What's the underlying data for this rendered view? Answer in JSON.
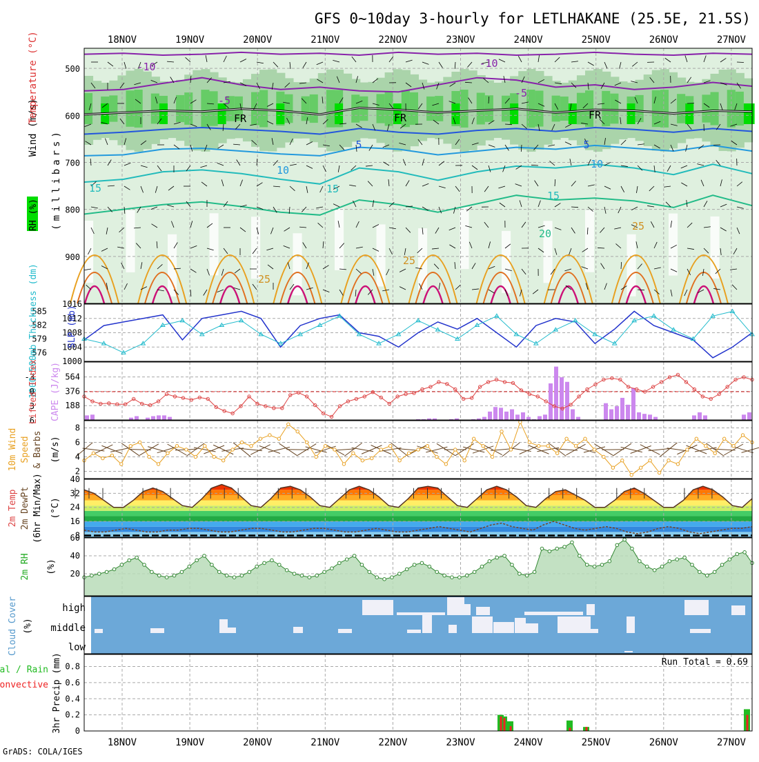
{
  "title": "GFS 0~10day 3-hourly for LETLHAKANE (25.5E, 21.5S)",
  "footer": "GrADS: COLA/IGES",
  "days": [
    "18NOV",
    "19NOV",
    "20NOV",
    "21NOV",
    "22NOV",
    "23NOV",
    "24NOV",
    "25NOV",
    "26NOV",
    "27NOV"
  ],
  "colors": {
    "grid": "#a8a8a8",
    "frame": "#000000",
    "rh_dark": "#00dd00",
    "rh_mid": "#66cc66",
    "rh_light": "#aad4aa",
    "rh_pale": "#dff0df",
    "freeze": "#000000",
    "slp": "#2233cc",
    "thickness": "#22bbcc",
    "lifted": "#dd4444",
    "cape": "#cc88ee",
    "wind_speed": "#e8a020",
    "wind_barb": "#664422",
    "rh2m": "#55aa55",
    "cloud": "#6ca8d8",
    "cloud_gap": "#f0f0f8",
    "precip_total": "#22bb22",
    "precip_conv": "#ee2222"
  },
  "labels": {
    "upper": {
      "wind": "Wind (m/s)",
      "temperature": "Temperature (°C)",
      "rh": "RH (%)",
      "pressure": "(millibars)"
    },
    "slp_panel": {
      "thickness": "1000-500mb Thickness (dm)",
      "slp": "SLP (mb)"
    },
    "cape_panel": {
      "lifted": "Lifted Index",
      "cape": "CAPE (J/kg)"
    },
    "wind_panel": {
      "line1": "10m Wind",
      "line2": "Speed",
      "line3": "& Barbs",
      "unit": "(m/s)"
    },
    "temp_panel": {
      "line1": "2m Temp",
      "line2": "2m DewPt",
      "line3": "(6hr Min/Max)",
      "unit": "(°C)"
    },
    "rh_panel": {
      "line1": "2m RH",
      "unit": "(%)"
    },
    "cloud_panel": {
      "line1": "Cloud Cover",
      "unit": "(%)",
      "high": "high",
      "middle": "middle",
      "low": "low"
    },
    "precip_panel": {
      "line1": "Total / Rain",
      "line2": "Convective",
      "line3": "3hr Precip (mm)",
      "run_total": "Run Total = 0.69"
    }
  },
  "chart_data": [
    {
      "type": "heatmap",
      "name": "upper-air",
      "y_ticks": [
        500,
        600,
        700,
        800,
        900
      ],
      "ylim": [
        1000,
        450
      ],
      "contour_labels": [
        "-10",
        "-5",
        "FR",
        "5",
        "10",
        "15",
        "20",
        "25"
      ],
      "isotherms": [
        {
          "label": "-10",
          "values": [
            470,
            468,
            472,
            470,
            466,
            470,
            468,
            472,
            466,
            470,
            468,
            472,
            470,
            466,
            470,
            472,
            468,
            470
          ]
        },
        {
          "label": "-5",
          "values": [
            548,
            545,
            532,
            520,
            535,
            545,
            540,
            548,
            550,
            535,
            520,
            525,
            540,
            535,
            545,
            540,
            530,
            538
          ]
        },
        {
          "label": "FR",
          "values": [
            598,
            594,
            590,
            592,
            586,
            590,
            598,
            584,
            588,
            594,
            590,
            586,
            594,
            588,
            590,
            596,
            590,
            592
          ]
        },
        {
          "label": "5",
          "values": [
            640,
            636,
            630,
            626,
            630,
            634,
            640,
            628,
            636,
            640,
            632,
            628,
            634,
            626,
            630,
            636,
            628,
            634
          ]
        },
        {
          "label": "10",
          "values": [
            686,
            684,
            672,
            670,
            676,
            682,
            686,
            668,
            672,
            684,
            676,
            668,
            672,
            664,
            670,
            676,
            664,
            676
          ]
        },
        {
          "label": "15",
          "values": [
            742,
            736,
            720,
            716,
            724,
            736,
            746,
            712,
            720,
            738,
            720,
            708,
            712,
            704,
            712,
            726,
            704,
            724
          ]
        },
        {
          "label": "20",
          "values": [
            810,
            800,
            790,
            784,
            794,
            806,
            812,
            780,
            790,
            806,
            788,
            770,
            780,
            776,
            782,
            796,
            770,
            792
          ]
        }
      ],
      "annotations": [
        "-10",
        "-10",
        "-5",
        "-5",
        "FR",
        "FR",
        "FR",
        "5",
        "5",
        "10",
        "10",
        "15",
        "15",
        "15",
        "20",
        "25",
        "25",
        "25"
      ]
    },
    {
      "type": "line",
      "name": "slp-thickness",
      "series": [
        {
          "name": "SLP",
          "axis": "right",
          "ylim": [
            1000,
            1016
          ],
          "values": [
            1006,
            1010,
            1011,
            1012,
            1013,
            1006,
            1012,
            1013,
            1014,
            1012,
            1004,
            1010,
            1012,
            1013,
            1008,
            1007,
            1004,
            1008,
            1011,
            1009,
            1012,
            1008,
            1004,
            1010,
            1012,
            1011,
            1005,
            1009,
            1014,
            1010,
            1008,
            1006,
            1001,
            1004,
            1008
          ]
        },
        {
          "name": "Thickness",
          "axis": "left",
          "ylim": [
            575,
            586
          ],
          "values": [
            579,
            578,
            576,
            578,
            582,
            583,
            580,
            582,
            583,
            580,
            578,
            580,
            582,
            584,
            580,
            578,
            580,
            583,
            581,
            579,
            582,
            584,
            580,
            578,
            581,
            583,
            580,
            578,
            583,
            584,
            581,
            579,
            584,
            585,
            580
          ]
        }
      ],
      "left_ticks": [
        576,
        579,
        582,
        585
      ],
      "right_ticks": [
        1000,
        1004,
        1008,
        1012,
        1016
      ]
    },
    {
      "type": "bar",
      "name": "cape-lifted",
      "cape_ticks": [
        188,
        376,
        564
      ],
      "lifted_ticks": [
        -3,
        0,
        3,
        6
      ],
      "cape_values": [
        60,
        70,
        0,
        0,
        0,
        0,
        0,
        0,
        30,
        50,
        0,
        30,
        50,
        60,
        60,
        40,
        0,
        0,
        0,
        0,
        0,
        0,
        0,
        0,
        0,
        0,
        0,
        0,
        0,
        0,
        0,
        0,
        0,
        0,
        0,
        0,
        0,
        0,
        0,
        0,
        0,
        0,
        0,
        0,
        0,
        0,
        0,
        0,
        0,
        0,
        0,
        0,
        0,
        0,
        0,
        0,
        0,
        0,
        0,
        0,
        10,
        10,
        20,
        20,
        0,
        0,
        10,
        20,
        0,
        0,
        10,
        20,
        40,
        110,
        170,
        160,
        110,
        140,
        70,
        100,
        40,
        10,
        50,
        70,
        480,
        700,
        560,
        500,
        140,
        40,
        0,
        0,
        0,
        0,
        220,
        140,
        180,
        290,
        200,
        420,
        100,
        80,
        70,
        40,
        0,
        0,
        0,
        0,
        0,
        0,
        60,
        100,
        60,
        0,
        0,
        0,
        0,
        0,
        0,
        70,
        100
      ],
      "lifted_values": [
        1,
        2,
        2.5,
        2.4,
        2.6,
        2.6,
        1.5,
        2.5,
        2.8,
        2.0,
        0.5,
        1.0,
        1.3,
        1.7,
        1.2,
        1.5,
        3.2,
        4.0,
        4.5,
        3.0,
        1.0,
        2.5,
        3.0,
        3.4,
        3.4,
        0.7,
        0.2,
        1.0,
        2.8,
        4.5,
        5.2,
        3.0,
        2.0,
        1.5,
        1.0,
        0.1,
        1.2,
        2.5,
        1.0,
        0.5,
        0.3,
        -0.5,
        -1.0,
        -2.0,
        -1.6,
        -0.5,
        1.5,
        1.3,
        -1.0,
        -2.0,
        -2.5,
        -2.0,
        -1.8,
        -0.3,
        0.5,
        1.0,
        2.0,
        3.0,
        3.5,
        2.7,
        1.0,
        -0.5,
        -1.5,
        -2.5,
        -2.8,
        -2.5,
        -1.0,
        -0.5,
        0,
        -1.0,
        -2.0,
        -3.0,
        -3.5,
        -2.0,
        -0.5,
        1.0,
        1.5,
        0.5,
        -1.0,
        -2.5,
        -3.0,
        -2.5
      ]
    },
    {
      "type": "line",
      "name": "wind10m",
      "ylim": [
        1,
        9
      ],
      "y_ticks": [
        2,
        4,
        6,
        8
      ],
      "values": [
        3.5,
        4.5,
        3.8,
        4.2,
        3.0,
        5.5,
        6.0,
        4.0,
        3.0,
        4.5,
        5.5,
        5.0,
        4.0,
        5.5,
        4.0,
        3.5,
        5.0,
        6.0,
        5.5,
        6.5,
        7.0,
        6.5,
        8.5,
        7.5,
        6.0,
        4.0,
        5.5,
        5.0,
        3.0,
        4.5,
        3.5,
        3.8,
        5.0,
        5.5,
        3.5,
        4.5,
        5.0,
        5.5,
        4.0,
        3.0,
        5.0,
        3.5,
        6.5,
        5.5,
        4.0,
        7.5,
        5.0,
        8.8,
        6.0,
        5.5,
        5.5,
        4.5,
        6.5,
        5.5,
        6.5,
        5.0,
        4.0,
        2.5,
        3.5,
        1.5,
        2.5,
        3.5,
        1.8,
        3.5,
        3.0,
        5.0,
        6.5,
        5.5,
        4.5,
        6.5,
        5.5,
        7.0,
        6.0
      ]
    },
    {
      "type": "area",
      "name": "temp2m",
      "ylim": [
        7,
        40
      ],
      "y_ticks": [
        8,
        16,
        24,
        32,
        40
      ],
      "temp_values": [
        34,
        32,
        28,
        24,
        24,
        28,
        33,
        35,
        33,
        29,
        25,
        24,
        29,
        35,
        37,
        35,
        30,
        25,
        24,
        29,
        35,
        36,
        34,
        30,
        25,
        24,
        29,
        34,
        36,
        34,
        30,
        25,
        24,
        29,
        35,
        36,
        35,
        30,
        25,
        24,
        29,
        34,
        36,
        34,
        30,
        25,
        24,
        29,
        33,
        34,
        31,
        28,
        24,
        24,
        28,
        33,
        35,
        32,
        28,
        24,
        24,
        28,
        34,
        36,
        34,
        30,
        25,
        24,
        29
      ],
      "dew_values": [
        11,
        10,
        10,
        11,
        12,
        11,
        10,
        10,
        11,
        11,
        12,
        12,
        11,
        10,
        10,
        11,
        12,
        12,
        11,
        10,
        10,
        11,
        12,
        12,
        11,
        10,
        10,
        11,
        12,
        11,
        10,
        10,
        11,
        12,
        13,
        12,
        11,
        10,
        12,
        14,
        15,
        13,
        12,
        11,
        14,
        16,
        14,
        12,
        11,
        12,
        13,
        12,
        10,
        9,
        10,
        12,
        13,
        12,
        10,
        9,
        10,
        11,
        12,
        12,
        13
      ]
    },
    {
      "type": "area",
      "name": "rh2m",
      "ylim": [
        0,
        60
      ],
      "y_ticks": [
        20,
        40,
        60
      ],
      "values": [
        16,
        18,
        20,
        22,
        25,
        30,
        35,
        38,
        30,
        22,
        18,
        16,
        18,
        22,
        28,
        35,
        40,
        30,
        22,
        18,
        16,
        18,
        22,
        28,
        32,
        35,
        30,
        24,
        20,
        18,
        16,
        18,
        22,
        26,
        32,
        36,
        40,
        30,
        22,
        16,
        14,
        16,
        20,
        25,
        30,
        32,
        28,
        22,
        18,
        16,
        16,
        18,
        22,
        28,
        34,
        38,
        40,
        30,
        20,
        18,
        22,
        48,
        45,
        48,
        50,
        55,
        40,
        30,
        28,
        30,
        34,
        52,
        58,
        48,
        34,
        28,
        24,
        28,
        34,
        36,
        38,
        30,
        22,
        18,
        22,
        30,
        36,
        42,
        44,
        32
      ]
    },
    {
      "type": "heatmap",
      "name": "cloud-cover",
      "levels": [
        "high",
        "middle",
        "low"
      ],
      "high_clear": [
        0,
        0,
        0,
        0,
        0,
        0,
        0,
        0,
        0,
        0,
        0,
        0,
        0,
        0,
        0,
        0,
        0,
        0,
        0,
        0,
        0,
        0,
        0,
        0,
        0,
        0,
        0,
        0,
        0,
        0,
        0,
        0,
        0,
        0,
        0,
        0,
        0,
        0,
        0,
        0,
        0,
        0,
        0,
        0,
        0,
        0,
        0,
        0,
        0,
        0,
        0,
        0,
        0,
        0,
        0,
        0,
        0,
        0,
        0,
        0,
        0,
        0,
        0,
        0,
        0,
        0,
        0,
        0,
        0,
        0,
        0,
        0,
        0,
        0,
        0,
        0,
        0,
        0,
        0,
        0,
        0,
        0,
        0,
        0,
        0,
        0,
        0,
        0,
        0,
        0,
        0,
        0,
        0,
        0,
        0,
        0,
        0,
        0,
        0,
        0,
        0,
        0,
        0,
        0,
        0,
        0,
        0,
        0,
        0,
        0,
        0,
        0,
        0,
        0,
        0,
        0,
        0,
        0,
        0,
        0,
        0,
        0,
        0,
        0,
        0,
        0,
        0,
        0,
        0,
        0,
        0,
        0,
        0,
        0,
        0,
        0,
        0,
        0,
        0,
        0,
        0,
        0,
        0,
        0,
        0,
        0,
        0,
        0,
        0,
        0,
        0,
        0,
        0,
        0,
        0,
        0,
        0,
        0,
        0,
        0
      ],
      "note": "blue = no cloud, light bars = cloud fraction"
    },
    {
      "type": "bar",
      "name": "precip3hr",
      "ylim": [
        0,
        1
      ],
      "y_ticks": [
        0,
        0.2,
        0.4,
        0.6,
        0.8
      ],
      "total": [
        {
          "x": "23NOV 12Z",
          "v": 0.2
        },
        {
          "x": "23NOV 15Z",
          "v": 0.18
        },
        {
          "x": "23NOV 18Z",
          "v": 0.12
        },
        {
          "x": "24NOV 15Z",
          "v": 0.13
        },
        {
          "x": "24NOV 21Z",
          "v": 0.05
        },
        {
          "x": "27NOV 06Z",
          "v": 0.27
        }
      ],
      "convective": [
        {
          "x": "23NOV 12Z",
          "v": 0.18
        },
        {
          "x": "23NOV 15Z",
          "v": 0.16
        },
        {
          "x": "23NOV 18Z",
          "v": 0.06
        },
        {
          "x": "24NOV 15Z",
          "v": 0.04
        },
        {
          "x": "24NOV 21Z",
          "v": 0.05
        },
        {
          "x": "27NOV 06Z",
          "v": 0.2
        }
      ]
    }
  ]
}
